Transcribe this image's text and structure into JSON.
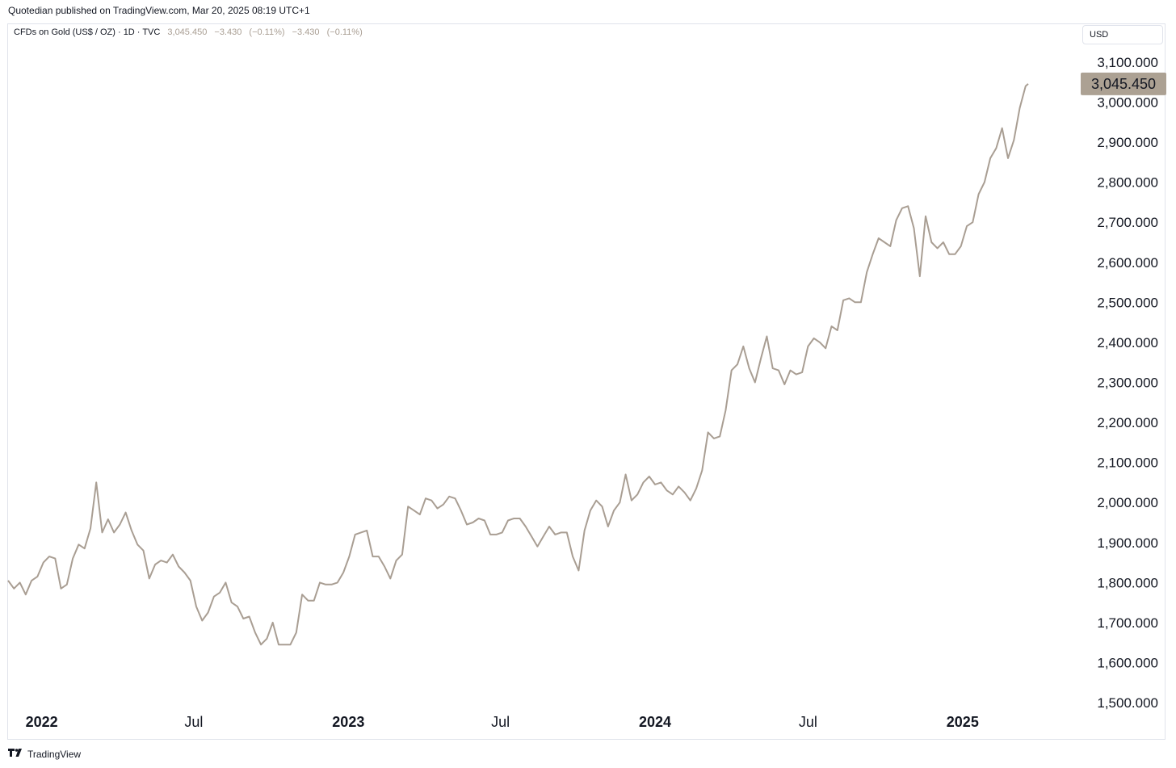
{
  "header": {
    "published": "Quotedian published on TradingView.com, Mar 20, 2025 08:19 UTC+1"
  },
  "legend": {
    "symbol": "CFDs on Gold (US$ / OZ) · 1D · TVC",
    "last": "3,045.450",
    "change": "−3.430",
    "change_pct": "(−0.11%)",
    "change2": "−3.430",
    "change2_pct": "(−0.11%)"
  },
  "currency": "USD",
  "price_badge": "3,045.450",
  "footer": {
    "brand": "TradingView",
    "logo_icon": "tradingview-logo-icon"
  },
  "colors": {
    "line": "#a99e93",
    "badge_bg": "#aca193",
    "grid_border": "#e0e3eb"
  },
  "chart_data": {
    "type": "line",
    "series": [
      {
        "values": [
          {
            "x": "2021-11-22",
            "y": 1805
          },
          {
            "x": "2021-11-29",
            "y": 1785
          },
          {
            "x": "2021-12-06",
            "y": 1800
          },
          {
            "x": "2021-12-13",
            "y": 1770
          },
          {
            "x": "2021-12-20",
            "y": 1805
          },
          {
            "x": "2021-12-27",
            "y": 1815
          },
          {
            "x": "2022-01-03",
            "y": 1850
          },
          {
            "x": "2022-01-10",
            "y": 1865
          },
          {
            "x": "2022-01-17",
            "y": 1860
          },
          {
            "x": "2022-01-24",
            "y": 1785
          },
          {
            "x": "2022-01-31",
            "y": 1795
          },
          {
            "x": "2022-02-07",
            "y": 1860
          },
          {
            "x": "2022-02-14",
            "y": 1895
          },
          {
            "x": "2022-02-21",
            "y": 1885
          },
          {
            "x": "2022-02-28",
            "y": 1935
          },
          {
            "x": "2022-03-07",
            "y": 2050
          },
          {
            "x": "2022-03-14",
            "y": 1925
          },
          {
            "x": "2022-03-21",
            "y": 1958
          },
          {
            "x": "2022-03-28",
            "y": 1925
          },
          {
            "x": "2022-04-04",
            "y": 1945
          },
          {
            "x": "2022-04-11",
            "y": 1975
          },
          {
            "x": "2022-04-18",
            "y": 1930
          },
          {
            "x": "2022-04-25",
            "y": 1895
          },
          {
            "x": "2022-05-02",
            "y": 1880
          },
          {
            "x": "2022-05-09",
            "y": 1810
          },
          {
            "x": "2022-05-16",
            "y": 1845
          },
          {
            "x": "2022-05-23",
            "y": 1855
          },
          {
            "x": "2022-05-30",
            "y": 1850
          },
          {
            "x": "2022-06-06",
            "y": 1870
          },
          {
            "x": "2022-06-13",
            "y": 1840
          },
          {
            "x": "2022-06-20",
            "y": 1825
          },
          {
            "x": "2022-06-27",
            "y": 1805
          },
          {
            "x": "2022-07-04",
            "y": 1740
          },
          {
            "x": "2022-07-11",
            "y": 1705
          },
          {
            "x": "2022-07-18",
            "y": 1725
          },
          {
            "x": "2022-07-25",
            "y": 1765
          },
          {
            "x": "2022-08-01",
            "y": 1775
          },
          {
            "x": "2022-08-08",
            "y": 1800
          },
          {
            "x": "2022-08-15",
            "y": 1750
          },
          {
            "x": "2022-08-22",
            "y": 1740
          },
          {
            "x": "2022-08-29",
            "y": 1710
          },
          {
            "x": "2022-09-05",
            "y": 1715
          },
          {
            "x": "2022-09-12",
            "y": 1675
          },
          {
            "x": "2022-09-19",
            "y": 1645
          },
          {
            "x": "2022-09-26",
            "y": 1660
          },
          {
            "x": "2022-10-03",
            "y": 1700
          },
          {
            "x": "2022-10-10",
            "y": 1645
          },
          {
            "x": "2022-10-17",
            "y": 1645
          },
          {
            "x": "2022-10-24",
            "y": 1645
          },
          {
            "x": "2022-10-31",
            "y": 1675
          },
          {
            "x": "2022-11-07",
            "y": 1770
          },
          {
            "x": "2022-11-14",
            "y": 1755
          },
          {
            "x": "2022-11-21",
            "y": 1755
          },
          {
            "x": "2022-11-28",
            "y": 1800
          },
          {
            "x": "2022-12-05",
            "y": 1795
          },
          {
            "x": "2022-12-12",
            "y": 1795
          },
          {
            "x": "2022-12-19",
            "y": 1800
          },
          {
            "x": "2022-12-26",
            "y": 1825
          },
          {
            "x": "2023-01-02",
            "y": 1865
          },
          {
            "x": "2023-01-09",
            "y": 1920
          },
          {
            "x": "2023-01-16",
            "y": 1925
          },
          {
            "x": "2023-01-23",
            "y": 1930
          },
          {
            "x": "2023-01-30",
            "y": 1865
          },
          {
            "x": "2023-02-06",
            "y": 1865
          },
          {
            "x": "2023-02-13",
            "y": 1840
          },
          {
            "x": "2023-02-20",
            "y": 1810
          },
          {
            "x": "2023-02-27",
            "y": 1855
          },
          {
            "x": "2023-03-06",
            "y": 1870
          },
          {
            "x": "2023-03-13",
            "y": 1990
          },
          {
            "x": "2023-03-20",
            "y": 1980
          },
          {
            "x": "2023-03-27",
            "y": 1970
          },
          {
            "x": "2023-04-03",
            "y": 2010
          },
          {
            "x": "2023-04-10",
            "y": 2005
          },
          {
            "x": "2023-04-17",
            "y": 1985
          },
          {
            "x": "2023-04-24",
            "y": 1995
          },
          {
            "x": "2023-05-01",
            "y": 2015
          },
          {
            "x": "2023-05-08",
            "y": 2010
          },
          {
            "x": "2023-05-15",
            "y": 1980
          },
          {
            "x": "2023-05-22",
            "y": 1945
          },
          {
            "x": "2023-05-29",
            "y": 1950
          },
          {
            "x": "2023-06-05",
            "y": 1960
          },
          {
            "x": "2023-06-12",
            "y": 1955
          },
          {
            "x": "2023-06-19",
            "y": 1920
          },
          {
            "x": "2023-06-26",
            "y": 1920
          },
          {
            "x": "2023-07-03",
            "y": 1925
          },
          {
            "x": "2023-07-10",
            "y": 1955
          },
          {
            "x": "2023-07-17",
            "y": 1960
          },
          {
            "x": "2023-07-24",
            "y": 1960
          },
          {
            "x": "2023-07-31",
            "y": 1940
          },
          {
            "x": "2023-08-07",
            "y": 1915
          },
          {
            "x": "2023-08-14",
            "y": 1890
          },
          {
            "x": "2023-08-21",
            "y": 1915
          },
          {
            "x": "2023-08-28",
            "y": 1940
          },
          {
            "x": "2023-09-04",
            "y": 1920
          },
          {
            "x": "2023-09-11",
            "y": 1925
          },
          {
            "x": "2023-09-18",
            "y": 1925
          },
          {
            "x": "2023-09-25",
            "y": 1865
          },
          {
            "x": "2023-10-02",
            "y": 1830
          },
          {
            "x": "2023-10-09",
            "y": 1930
          },
          {
            "x": "2023-10-16",
            "y": 1980
          },
          {
            "x": "2023-10-23",
            "y": 2005
          },
          {
            "x": "2023-10-30",
            "y": 1990
          },
          {
            "x": "2023-11-06",
            "y": 1940
          },
          {
            "x": "2023-11-13",
            "y": 1980
          },
          {
            "x": "2023-11-20",
            "y": 2000
          },
          {
            "x": "2023-11-27",
            "y": 2070
          },
          {
            "x": "2023-12-04",
            "y": 2005
          },
          {
            "x": "2023-12-11",
            "y": 2020
          },
          {
            "x": "2023-12-18",
            "y": 2050
          },
          {
            "x": "2023-12-25",
            "y": 2065
          },
          {
            "x": "2024-01-01",
            "y": 2045
          },
          {
            "x": "2024-01-08",
            "y": 2050
          },
          {
            "x": "2024-01-15",
            "y": 2030
          },
          {
            "x": "2024-01-22",
            "y": 2020
          },
          {
            "x": "2024-01-29",
            "y": 2040
          },
          {
            "x": "2024-02-05",
            "y": 2025
          },
          {
            "x": "2024-02-12",
            "y": 2005
          },
          {
            "x": "2024-02-19",
            "y": 2035
          },
          {
            "x": "2024-02-26",
            "y": 2080
          },
          {
            "x": "2024-03-04",
            "y": 2175
          },
          {
            "x": "2024-03-11",
            "y": 2160
          },
          {
            "x": "2024-03-18",
            "y": 2165
          },
          {
            "x": "2024-03-25",
            "y": 2230
          },
          {
            "x": "2024-04-01",
            "y": 2330
          },
          {
            "x": "2024-04-08",
            "y": 2345
          },
          {
            "x": "2024-04-15",
            "y": 2390
          },
          {
            "x": "2024-04-22",
            "y": 2335
          },
          {
            "x": "2024-04-29",
            "y": 2300
          },
          {
            "x": "2024-05-06",
            "y": 2360
          },
          {
            "x": "2024-05-13",
            "y": 2415
          },
          {
            "x": "2024-05-20",
            "y": 2335
          },
          {
            "x": "2024-05-27",
            "y": 2330
          },
          {
            "x": "2024-06-03",
            "y": 2295
          },
          {
            "x": "2024-06-10",
            "y": 2330
          },
          {
            "x": "2024-06-17",
            "y": 2320
          },
          {
            "x": "2024-06-24",
            "y": 2325
          },
          {
            "x": "2024-07-01",
            "y": 2390
          },
          {
            "x": "2024-07-08",
            "y": 2410
          },
          {
            "x": "2024-07-15",
            "y": 2400
          },
          {
            "x": "2024-07-22",
            "y": 2385
          },
          {
            "x": "2024-07-29",
            "y": 2440
          },
          {
            "x": "2024-08-05",
            "y": 2430
          },
          {
            "x": "2024-08-12",
            "y": 2505
          },
          {
            "x": "2024-08-19",
            "y": 2510
          },
          {
            "x": "2024-08-26",
            "y": 2500
          },
          {
            "x": "2024-09-02",
            "y": 2500
          },
          {
            "x": "2024-09-09",
            "y": 2575
          },
          {
            "x": "2024-09-16",
            "y": 2620
          },
          {
            "x": "2024-09-23",
            "y": 2660
          },
          {
            "x": "2024-09-30",
            "y": 2650
          },
          {
            "x": "2024-10-07",
            "y": 2640
          },
          {
            "x": "2024-10-14",
            "y": 2705
          },
          {
            "x": "2024-10-21",
            "y": 2735
          },
          {
            "x": "2024-10-28",
            "y": 2740
          },
          {
            "x": "2024-11-04",
            "y": 2685
          },
          {
            "x": "2024-11-11",
            "y": 2565
          },
          {
            "x": "2024-11-18",
            "y": 2715
          },
          {
            "x": "2024-11-25",
            "y": 2650
          },
          {
            "x": "2024-12-02",
            "y": 2635
          },
          {
            "x": "2024-12-09",
            "y": 2650
          },
          {
            "x": "2024-12-16",
            "y": 2620
          },
          {
            "x": "2024-12-23",
            "y": 2620
          },
          {
            "x": "2024-12-30",
            "y": 2640
          },
          {
            "x": "2025-01-06",
            "y": 2690
          },
          {
            "x": "2025-01-13",
            "y": 2700
          },
          {
            "x": "2025-01-20",
            "y": 2770
          },
          {
            "x": "2025-01-27",
            "y": 2800
          },
          {
            "x": "2025-02-03",
            "y": 2860
          },
          {
            "x": "2025-02-10",
            "y": 2885
          },
          {
            "x": "2025-02-17",
            "y": 2935
          },
          {
            "x": "2025-02-24",
            "y": 2860
          },
          {
            "x": "2025-03-03",
            "y": 2905
          },
          {
            "x": "2025-03-10",
            "y": 2985
          },
          {
            "x": "2025-03-17",
            "y": 3040
          },
          {
            "x": "2025-03-20",
            "y": 3045.45
          }
        ]
      }
    ],
    "x_ticks": [
      {
        "date": "2022-01-01",
        "label": "2022",
        "year": true
      },
      {
        "date": "2022-07-01",
        "label": "Jul",
        "year": false
      },
      {
        "date": "2023-01-01",
        "label": "2023",
        "year": true
      },
      {
        "date": "2023-07-01",
        "label": "Jul",
        "year": false
      },
      {
        "date": "2024-01-01",
        "label": "2024",
        "year": true
      },
      {
        "date": "2024-07-01",
        "label": "Jul",
        "year": false
      },
      {
        "date": "2025-01-01",
        "label": "2025",
        "year": true
      }
    ],
    "y_ticks": [
      {
        "value": 1500,
        "label": "1,500.000"
      },
      {
        "value": 1600,
        "label": "1,600.000"
      },
      {
        "value": 1700,
        "label": "1,700.000"
      },
      {
        "value": 1800,
        "label": "1,800.000"
      },
      {
        "value": 1900,
        "label": "1,900.000"
      },
      {
        "value": 2000,
        "label": "2,000.000"
      },
      {
        "value": 2100,
        "label": "2,100.000"
      },
      {
        "value": 2200,
        "label": "2,200.000"
      },
      {
        "value": 2300,
        "label": "2,300.000"
      },
      {
        "value": 2400,
        "label": "2,400.000"
      },
      {
        "value": 2500,
        "label": "2,500.000"
      },
      {
        "value": 2600,
        "label": "2,600.000"
      },
      {
        "value": 2700,
        "label": "2,700.000"
      },
      {
        "value": 2800,
        "label": "2,800.000"
      },
      {
        "value": 2900,
        "label": "2,900.000"
      },
      {
        "value": 3000,
        "label": "3,000.000"
      },
      {
        "value": 3100,
        "label": "3,100.000"
      }
    ],
    "xlim": [
      "2021-11-22",
      "2025-04-15"
    ],
    "ylim": [
      1480,
      3130
    ],
    "grid": false,
    "y_axis_side": "right",
    "last_value": 3045.45
  }
}
